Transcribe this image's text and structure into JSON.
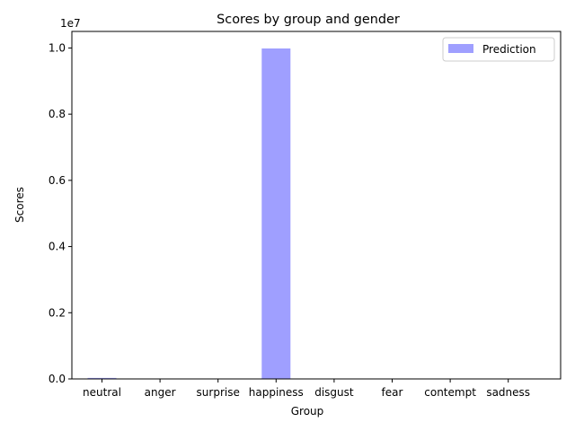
{
  "chart_data": {
    "type": "bar",
    "title": "Scores by group and gender",
    "xlabel": "Group",
    "ylabel": "Scores",
    "offset_label": "1e7",
    "categories": [
      "neutral",
      "anger",
      "surprise",
      "happiness",
      "disgust",
      "fear",
      "contempt",
      "sadness"
    ],
    "series": [
      {
        "name": "Prediction",
        "color": "#9f9fff",
        "values": [
          30000,
          0,
          0,
          9985000,
          0,
          0,
          0,
          0
        ]
      }
    ],
    "ylim": [
      0,
      10500000
    ],
    "yticks": [
      0,
      2000000,
      4000000,
      6000000,
      8000000,
      10000000
    ],
    "ytick_labels": [
      "0.0",
      "0.2",
      "0.4",
      "0.6",
      "0.8",
      "1.0"
    ],
    "legend_position": "top-right",
    "grid": false
  }
}
